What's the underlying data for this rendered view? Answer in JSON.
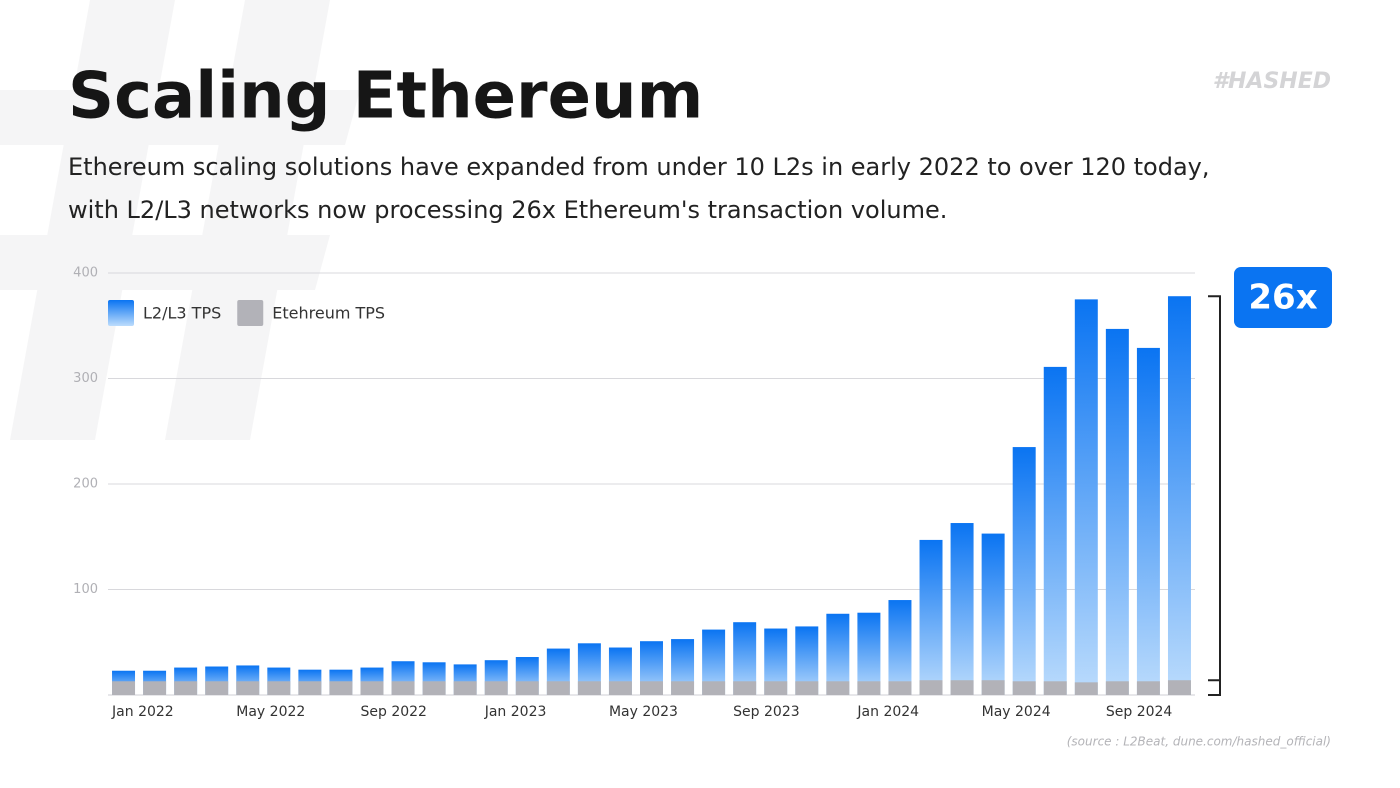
{
  "brand": "#HASHED",
  "chart_data": {
    "type": "bar",
    "title": "Scaling Ethereum",
    "subtitle": [
      "Ethereum scaling solutions have expanded from under 10 L2s in early 2022 to over 120 today,",
      "with L2/L3 networks now processing 26x Ethereum's transaction volume."
    ],
    "categories": [
      "Jan 2022",
      null,
      null,
      null,
      "May 2022",
      null,
      null,
      null,
      "Sep 2022",
      null,
      null,
      null,
      "Jan 2023",
      null,
      null,
      null,
      "May 2023",
      null,
      null,
      null,
      "Sep 2023",
      null,
      null,
      null,
      "Jan 2024",
      null,
      null,
      null,
      "May 2024",
      null,
      null,
      null,
      "Sep 2024",
      null,
      null
    ],
    "series": [
      {
        "name": "L2/L3 TPS",
        "color": "#0a74f2",
        "values": [
          23,
          23,
          26,
          27,
          28,
          26,
          24,
          24,
          26,
          32,
          31,
          29,
          33,
          36,
          44,
          49,
          45,
          51,
          53,
          62,
          69,
          63,
          65,
          77,
          78,
          90,
          147,
          163,
          153,
          235,
          311,
          375,
          347,
          329,
          378
        ]
      },
      {
        "name": "Etehreum TPS",
        "color": "#b2b2b8",
        "values": [
          13,
          13,
          13,
          13,
          13,
          13,
          13,
          13,
          13,
          13,
          13,
          13,
          13,
          13,
          13,
          13,
          13,
          13,
          13,
          13,
          13,
          13,
          13,
          13,
          13,
          13,
          14,
          14,
          14,
          13,
          13,
          12,
          13,
          13,
          14
        ]
      }
    ],
    "ylim": [
      0,
      400
    ],
    "yticks": [
      100,
      200,
      300,
      400
    ],
    "grid": true,
    "legend": "top-left",
    "annotation": "26x",
    "source": "(source : L2Beat, dune.com/hashed_official)"
  }
}
